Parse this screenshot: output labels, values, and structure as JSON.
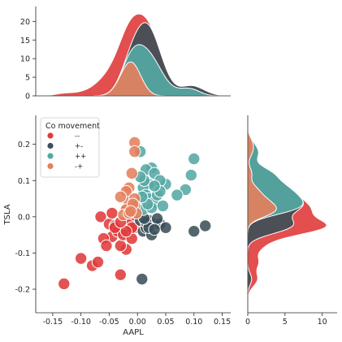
{
  "chart_data": {
    "type": "scatter",
    "subtype": "jointplot-with-marginal-stacked-kde",
    "xlabel": "AAPL",
    "ylabel": "TSLA",
    "xlim": [
      -0.18,
      0.165
    ],
    "ylim": [
      -0.265,
      0.28
    ],
    "xticks": [
      "-0.15",
      "-0.10",
      "-0.05",
      "0.00",
      "0.05",
      "0.10",
      "0.15"
    ],
    "yticks": [
      "-0.2",
      "-0.1",
      "0.0",
      "0.1",
      "0.2"
    ],
    "top_marginal": {
      "ylim": [
        0,
        24
      ],
      "ticks": [
        "0",
        "5",
        "10",
        "15",
        "20"
      ]
    },
    "right_marginal": {
      "xlim": [
        0,
        12
      ],
      "ticks": [
        "0",
        "5",
        "10"
      ]
    },
    "grid": false,
    "legend": {
      "title": "Co movement",
      "placement": "top-left",
      "entries": [
        {
          "label": "--",
          "color": "#e03b3b"
        },
        {
          "label": "+-",
          "color": "#3c5059"
        },
        {
          "label": "++",
          "color": "#55a8a4"
        },
        {
          "label": "-+",
          "color": "#e5805d"
        }
      ]
    },
    "series": [
      {
        "name": "--",
        "color": "#e03b3b",
        "points": [
          [
            -0.13,
            -0.185
          ],
          [
            -0.1,
            -0.115
          ],
          [
            -0.08,
            -0.135
          ],
          [
            -0.07,
            -0.125
          ],
          [
            -0.065,
            0.0
          ],
          [
            -0.045,
            -0.055
          ],
          [
            -0.03,
            -0.16
          ],
          [
            -0.02,
            -0.09
          ],
          [
            -0.05,
            -0.02
          ],
          [
            -0.04,
            -0.025
          ],
          [
            -0.035,
            -0.04
          ],
          [
            -0.03,
            -0.08
          ],
          [
            -0.025,
            -0.05
          ],
          [
            -0.02,
            0.02
          ],
          [
            -0.015,
            -0.01
          ],
          [
            -0.01,
            -0.06
          ],
          [
            -0.005,
            -0.03
          ],
          [
            -0.06,
            -0.06
          ],
          [
            -0.055,
            -0.08
          ],
          [
            -0.045,
            0.01
          ],
          [
            -0.04,
            -0.03
          ],
          [
            -0.01,
            -0.03
          ],
          [
            -0.005,
            0.005
          ],
          [
            -0.02,
            -0.04
          ],
          [
            -0.03,
            -0.015
          ]
        ]
      },
      {
        "name": "+-",
        "color": "#3c5059",
        "points": [
          [
            0.008,
            -0.172
          ],
          [
            0.02,
            -0.01
          ],
          [
            0.03,
            -0.02
          ],
          [
            0.04,
            -0.02
          ],
          [
            0.05,
            -0.03
          ],
          [
            0.1,
            -0.04
          ],
          [
            0.12,
            -0.025
          ],
          [
            0.01,
            -0.04
          ],
          [
            0.015,
            -0.03
          ],
          [
            0.025,
            -0.05
          ],
          [
            0.035,
            -0.005
          ],
          [
            0.005,
            -0.01
          ],
          [
            0.015,
            -0.015
          ],
          [
            0.02,
            -0.03
          ],
          [
            0.012,
            -0.005
          ],
          [
            0.03,
            -0.035
          ]
        ]
      },
      {
        "name": "++",
        "color": "#55a8a4",
        "points": [
          [
            0.005,
            0.18
          ],
          [
            0.1,
            0.16
          ],
          [
            0.095,
            0.115
          ],
          [
            0.085,
            0.075
          ],
          [
            0.07,
            0.06
          ],
          [
            0.05,
            0.09
          ],
          [
            0.025,
            0.135
          ],
          [
            0.015,
            0.13
          ],
          [
            0.03,
            0.12
          ],
          [
            0.04,
            0.1
          ],
          [
            0.02,
            0.09
          ],
          [
            0.01,
            0.08
          ],
          [
            0.015,
            0.06
          ],
          [
            0.02,
            0.05
          ],
          [
            0.03,
            0.04
          ],
          [
            0.005,
            0.04
          ],
          [
            0.01,
            0.02
          ],
          [
            0.025,
            0.025
          ],
          [
            0.035,
            0.06
          ],
          [
            0.045,
            0.03
          ],
          [
            0.04,
            0.07
          ],
          [
            0.012,
            0.1
          ],
          [
            0.03,
            0.085
          ],
          [
            0.018,
            0.035
          ],
          [
            0.008,
            0.055
          ],
          [
            0.005,
            0.11
          ]
        ]
      },
      {
        "name": "-+",
        "color": "#e5805d",
        "points": [
          [
            -0.005,
            0.205
          ],
          [
            -0.005,
            0.18
          ],
          [
            -0.01,
            0.12
          ],
          [
            -0.015,
            0.08
          ],
          [
            -0.02,
            0.07
          ],
          [
            -0.015,
            0.04
          ],
          [
            -0.005,
            0.05
          ],
          [
            -0.01,
            0.025
          ],
          [
            -0.02,
            0.02
          ],
          [
            -0.005,
            0.03
          ],
          [
            -0.002,
            0.01
          ],
          [
            -0.008,
            0.035
          ],
          [
            -0.025,
            0.005
          ],
          [
            -0.015,
            0.01
          ],
          [
            -0.03,
            0.055
          ],
          [
            -0.012,
            0.015
          ]
        ]
      }
    ],
    "kde_colors_in_stack_order": [
      "#e03b3b",
      "#3c5059",
      "#55a8a4",
      "#e5805d"
    ]
  }
}
